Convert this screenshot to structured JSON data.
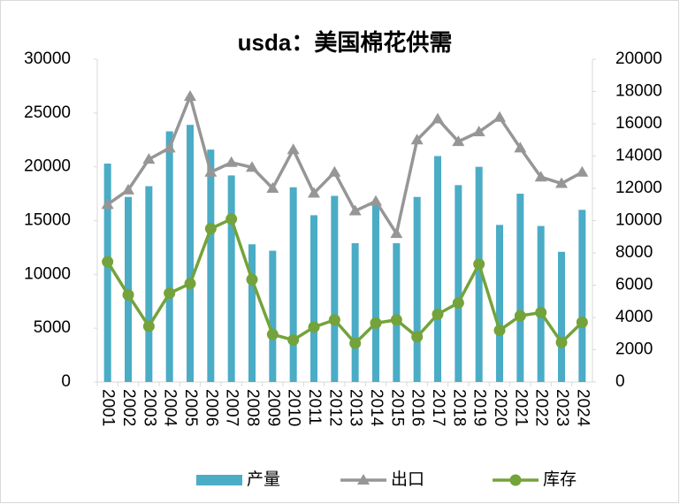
{
  "chart_data": {
    "type": "bar-line",
    "title": "usda：美国棉花供需",
    "categories": [
      "2001",
      "2002",
      "2003",
      "2004",
      "2005",
      "2006",
      "2007",
      "2008",
      "2009",
      "2010",
      "2011",
      "2012",
      "2013",
      "2014",
      "2015",
      "2016",
      "2017",
      "2018",
      "2019",
      "2020",
      "2021",
      "2022",
      "2023",
      "2024"
    ],
    "series": [
      {
        "name": "产量",
        "type": "bar",
        "color": "#4bacc6",
        "values": [
          20300,
          17200,
          18200,
          23300,
          23900,
          21600,
          19200,
          12800,
          12200,
          18100,
          15500,
          17300,
          12900,
          16400,
          12900,
          17200,
          21000,
          18300,
          20000,
          14600,
          17500,
          14500,
          12100,
          16000
        ]
      },
      {
        "name": "出口",
        "type": "line",
        "axis": "y2",
        "color": "#969696",
        "marker": "triangle",
        "values": [
          11000,
          11900,
          13800,
          14500,
          17700,
          13000,
          13600,
          13300,
          12000,
          14400,
          11700,
          13000,
          10600,
          11200,
          9200,
          15000,
          16300,
          14900,
          15500,
          16400,
          14500,
          12700,
          12300,
          13000
        ]
      },
      {
        "name": "库存",
        "type": "line",
        "axis": "y2",
        "color": "#73a33a",
        "marker": "circle",
        "values": [
          7450,
          5400,
          3450,
          5500,
          6100,
          9500,
          10100,
          6350,
          2950,
          2600,
          3400,
          3850,
          2400,
          3650,
          3850,
          2800,
          4200,
          4900,
          7300,
          3200,
          4100,
          4300,
          2450,
          3700
        ]
      }
    ],
    "ylim": [
      0,
      30000
    ],
    "yticks": [
      0,
      5000,
      10000,
      15000,
      20000,
      25000,
      30000
    ],
    "y2lim": [
      0,
      20000
    ],
    "y2ticks": [
      0,
      2000,
      4000,
      6000,
      8000,
      10000,
      12000,
      14000,
      16000,
      18000,
      20000
    ],
    "legend": "bottom"
  }
}
